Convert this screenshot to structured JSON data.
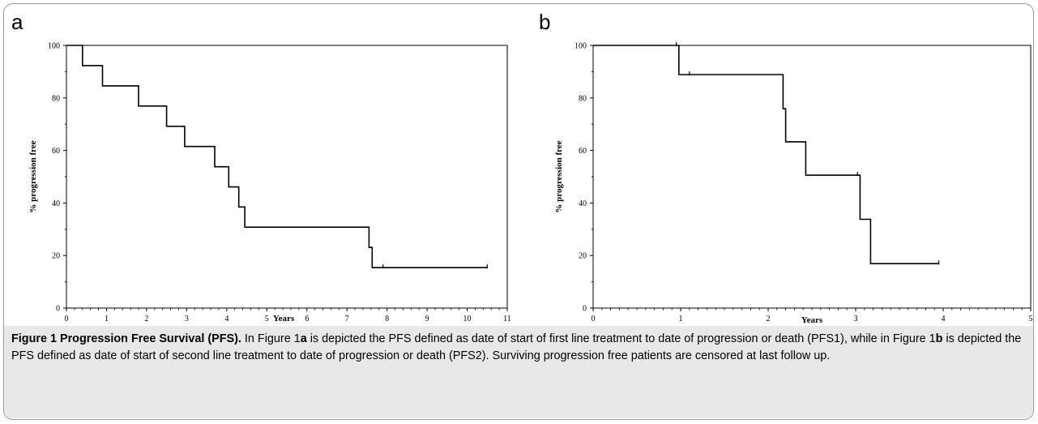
{
  "panels": {
    "a": {
      "label": "a"
    },
    "b": {
      "label": "b"
    }
  },
  "chart_data": [
    {
      "type": "line",
      "step": true,
      "panel": "a",
      "xlabel": "Years",
      "ylabel": "% progression free",
      "xlim": [
        0,
        11
      ],
      "ylim": [
        0,
        100
      ],
      "xticks": [
        "0",
        "1",
        "2",
        "3",
        "4",
        "5",
        "6",
        "7",
        "8",
        "9",
        "10",
        "11"
      ],
      "yticks": [
        "0",
        "20",
        "40",
        "60",
        "80",
        "100"
      ],
      "series": [
        {
          "x": [
            0,
            0.4,
            0.4,
            0.9,
            0.9,
            1.8,
            1.8,
            2.5,
            2.5,
            2.95,
            2.95,
            3.7,
            3.7,
            4.05,
            4.05,
            4.3,
            4.3,
            4.45,
            4.45,
            7.55,
            7.55,
            7.63,
            7.63,
            10.5
          ],
          "y": [
            100,
            100,
            92.3,
            92.3,
            84.6,
            84.6,
            76.9,
            76.9,
            69.2,
            69.2,
            61.5,
            61.5,
            53.8,
            53.8,
            46.1,
            46.1,
            38.5,
            38.5,
            30.8,
            30.8,
            23.1,
            23.1,
            15.4,
            15.4
          ]
        }
      ],
      "censored": [
        {
          "x": 7.9,
          "y": 15.4
        },
        {
          "x": 10.5,
          "y": 15.4
        }
      ]
    },
    {
      "type": "line",
      "step": true,
      "panel": "b",
      "xlabel": "Years",
      "ylabel": "% progression free",
      "xlim": [
        0,
        5
      ],
      "ylim": [
        0,
        100
      ],
      "xticks": [
        "0",
        "1",
        "2",
        "3",
        "4",
        "5"
      ],
      "yticks": [
        "0",
        "20",
        "40",
        "60",
        "80",
        "100"
      ],
      "series": [
        {
          "x": [
            0,
            0.98,
            0.98,
            2.17,
            2.17,
            2.2,
            2.2,
            2.43,
            2.43,
            3.05,
            3.05,
            3.17,
            3.17,
            3.95
          ],
          "y": [
            100,
            100,
            88.9,
            88.9,
            75.9,
            75.9,
            63.3,
            63.3,
            50.6,
            50.6,
            33.8,
            33.8,
            16.9,
            16.9
          ]
        }
      ],
      "censored": [
        {
          "x": 0.95,
          "y": 100
        },
        {
          "x": 1.1,
          "y": 88.9
        },
        {
          "x": 3.02,
          "y": 50.6
        },
        {
          "x": 3.95,
          "y": 16.9
        }
      ]
    }
  ],
  "caption": {
    "title": "Figure 1 Progression Free Survival (PFS).",
    "t1": " In Figure 1",
    "a": "a",
    "t2": " is depicted the PFS defined as date of start of first line treatment to date of progression or death (PFS1), while in Figure 1",
    "b": "b",
    "t3": " is depicted the PFS defined as date of start of second line treatment to date of progression or death (PFS2). Surviving progression free patients are censored at last follow up."
  }
}
